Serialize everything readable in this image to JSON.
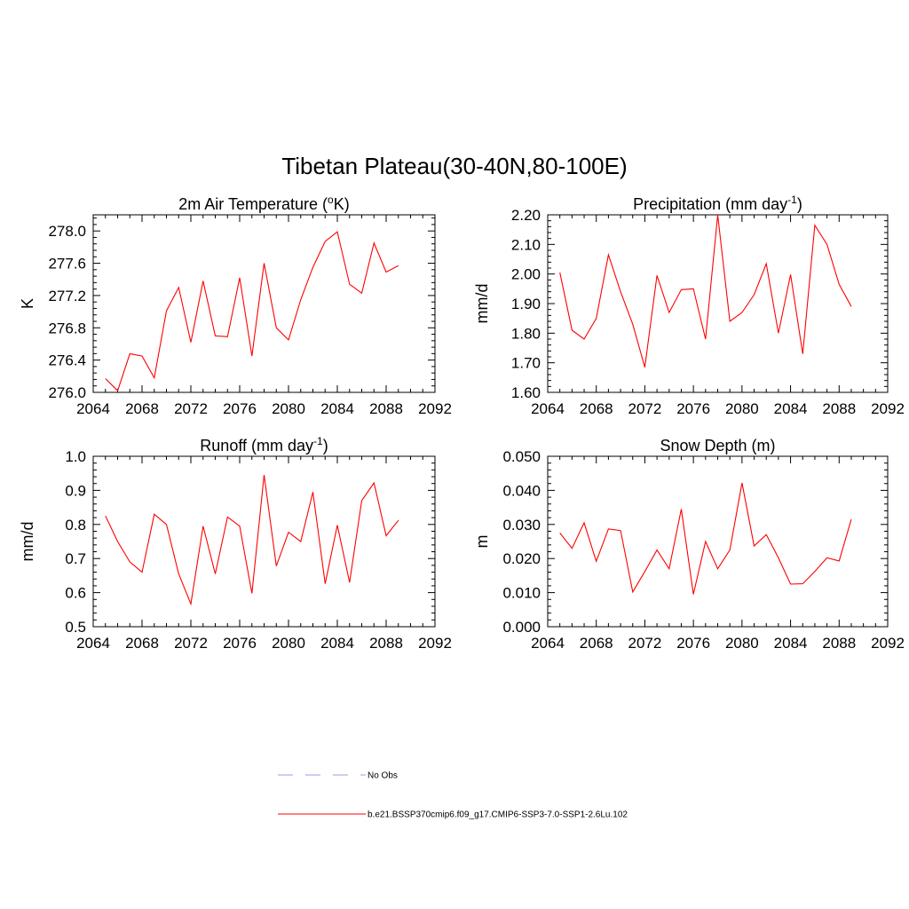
{
  "title": "Tibetan Plateau(30-40N,80-100E)",
  "colors": {
    "model": "#ff0000",
    "obs": "#9b9be6"
  },
  "legend": [
    {
      "label": "No Obs",
      "style": "dashed",
      "color": "#9b9be6"
    },
    {
      "label": "b.e21.BSSP370cmip6.f09_g17.CMIP6-SSP3-7.0-SSP1-2.6Lu.102",
      "style": "solid",
      "color": "#ff0000"
    }
  ],
  "chart_data": [
    {
      "type": "line",
      "title": {
        "main": "2m Air Temperature (",
        "sup": "o",
        "post": "K)"
      },
      "ylabel": "K",
      "xlim": [
        2064,
        2092
      ],
      "ylim": [
        276.0,
        278.2
      ],
      "xticks": [
        "2064",
        "2068",
        "2072",
        "2076",
        "2080",
        "2084",
        "2088",
        "2092"
      ],
      "yticks": [
        "276.0",
        "276.4",
        "276.8",
        "277.2",
        "277.6",
        "278.0"
      ],
      "x": [
        2065,
        2066,
        2067,
        2068,
        2069,
        2070,
        2071,
        2072,
        2073,
        2074,
        2075,
        2076,
        2077,
        2078,
        2079,
        2080,
        2081,
        2082,
        2083,
        2084,
        2085,
        2086,
        2087,
        2088,
        2089
      ],
      "series": [
        {
          "values": [
            276.17,
            276.02,
            276.48,
            276.45,
            276.18,
            277.01,
            277.3,
            276.62,
            277.38,
            276.7,
            276.69,
            277.42,
            276.45,
            277.6,
            276.8,
            276.65,
            277.15,
            277.55,
            277.87,
            277.99,
            277.34,
            277.23,
            277.85,
            277.49,
            277.57
          ]
        }
      ]
    },
    {
      "type": "line",
      "title": {
        "main": "Precipitation (mm day",
        "sup": "-1",
        "post": ")"
      },
      "ylabel": "mm/d",
      "xlim": [
        2064,
        2092
      ],
      "ylim": [
        1.6,
        2.2
      ],
      "xticks": [
        "2064",
        "2068",
        "2072",
        "2076",
        "2080",
        "2084",
        "2088",
        "2092"
      ],
      "yticks": [
        "1.60",
        "1.70",
        "1.80",
        "1.90",
        "2.00",
        "2.10",
        "2.20"
      ],
      "x": [
        2065,
        2066,
        2067,
        2068,
        2069,
        2070,
        2071,
        2072,
        2073,
        2074,
        2075,
        2076,
        2077,
        2078,
        2079,
        2080,
        2081,
        2082,
        2083,
        2084,
        2085,
        2086,
        2087,
        2088,
        2089
      ],
      "series": [
        {
          "values": [
            2.005,
            1.81,
            1.78,
            1.85,
            2.065,
            1.94,
            1.83,
            1.685,
            1.995,
            1.87,
            1.947,
            1.95,
            1.78,
            2.2,
            1.84,
            1.87,
            1.93,
            2.035,
            1.8,
            1.998,
            1.73,
            2.165,
            2.1,
            1.965,
            1.89
          ]
        }
      ]
    },
    {
      "type": "line",
      "title": {
        "main": "Runoff (mm day",
        "sup": "-1",
        "post": ")"
      },
      "ylabel": "mm/d",
      "xlim": [
        2064,
        2092
      ],
      "ylim": [
        0.5,
        1.0
      ],
      "xticks": [
        "2064",
        "2068",
        "2072",
        "2076",
        "2080",
        "2084",
        "2088",
        "2092"
      ],
      "yticks": [
        "0.5",
        "0.6",
        "0.7",
        "0.8",
        "0.9",
        "1.0"
      ],
      "x": [
        2065,
        2066,
        2067,
        2068,
        2069,
        2070,
        2071,
        2072,
        2073,
        2074,
        2075,
        2076,
        2077,
        2078,
        2079,
        2080,
        2081,
        2082,
        2083,
        2084,
        2085,
        2086,
        2087,
        2088,
        2089
      ],
      "series": [
        {
          "values": [
            0.825,
            0.75,
            0.69,
            0.66,
            0.83,
            0.8,
            0.655,
            0.567,
            0.795,
            0.655,
            0.822,
            0.795,
            0.598,
            0.945,
            0.678,
            0.777,
            0.75,
            0.895,
            0.626,
            0.798,
            0.63,
            0.87,
            0.922,
            0.767,
            0.812
          ]
        }
      ]
    },
    {
      "type": "line",
      "title": {
        "main": "Snow Depth (m)",
        "sup": "",
        "post": ""
      },
      "ylabel": "m",
      "xlim": [
        2064,
        2092
      ],
      "ylim": [
        0.0,
        0.05
      ],
      "xticks": [
        "2064",
        "2068",
        "2072",
        "2076",
        "2080",
        "2084",
        "2088",
        "2092"
      ],
      "yticks": [
        "0.000",
        "0.010",
        "0.020",
        "0.030",
        "0.040",
        "0.050"
      ],
      "x": [
        2065,
        2066,
        2067,
        2068,
        2069,
        2070,
        2071,
        2072,
        2073,
        2074,
        2075,
        2076,
        2077,
        2078,
        2079,
        2080,
        2081,
        2082,
        2083,
        2084,
        2085,
        2086,
        2087,
        2088,
        2089
      ],
      "series": [
        {
          "values": [
            0.0275,
            0.023,
            0.0305,
            0.0192,
            0.0287,
            0.0282,
            0.0102,
            0.0162,
            0.0225,
            0.017,
            0.0345,
            0.0095,
            0.025,
            0.017,
            0.0225,
            0.0422,
            0.0237,
            0.027,
            0.0202,
            0.0125,
            0.0126,
            0.0162,
            0.0202,
            0.0193,
            0.0315
          ]
        }
      ]
    }
  ]
}
